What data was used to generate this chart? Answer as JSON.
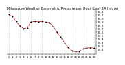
{
  "title": "Milwaukee Weather Barometric Pressure per Hour (Last 24 Hours)",
  "x_hours": [
    0,
    1,
    2,
    3,
    4,
    5,
    6,
    7,
    8,
    9,
    10,
    11,
    12,
    13,
    14,
    15,
    16,
    17,
    18,
    19,
    20,
    21,
    22,
    23
  ],
  "y_pressure": [
    30.12,
    30.05,
    29.92,
    29.78,
    29.7,
    29.72,
    29.9,
    29.91,
    29.9,
    29.91,
    29.89,
    29.88,
    29.75,
    29.6,
    29.45,
    29.28,
    29.15,
    29.05,
    29.02,
    29.03,
    29.1,
    29.13,
    29.14,
    29.12
  ],
  "line_color": "#cc0000",
  "marker_color": "#000000",
  "bg_color": "#ffffff",
  "grid_color": "#999999",
  "title_color": "#000000",
  "title_fontsize": 3.5,
  "tick_fontsize": 2.8,
  "ylim": [
    28.95,
    30.25
  ],
  "ytick_values": [
    29.1,
    29.2,
    29.3,
    29.4,
    29.5,
    29.6,
    29.7,
    29.8,
    29.9,
    30.0,
    30.1,
    30.2
  ],
  "x_grid_positions": [
    0,
    3,
    6,
    9,
    12,
    15,
    18,
    21,
    23
  ]
}
